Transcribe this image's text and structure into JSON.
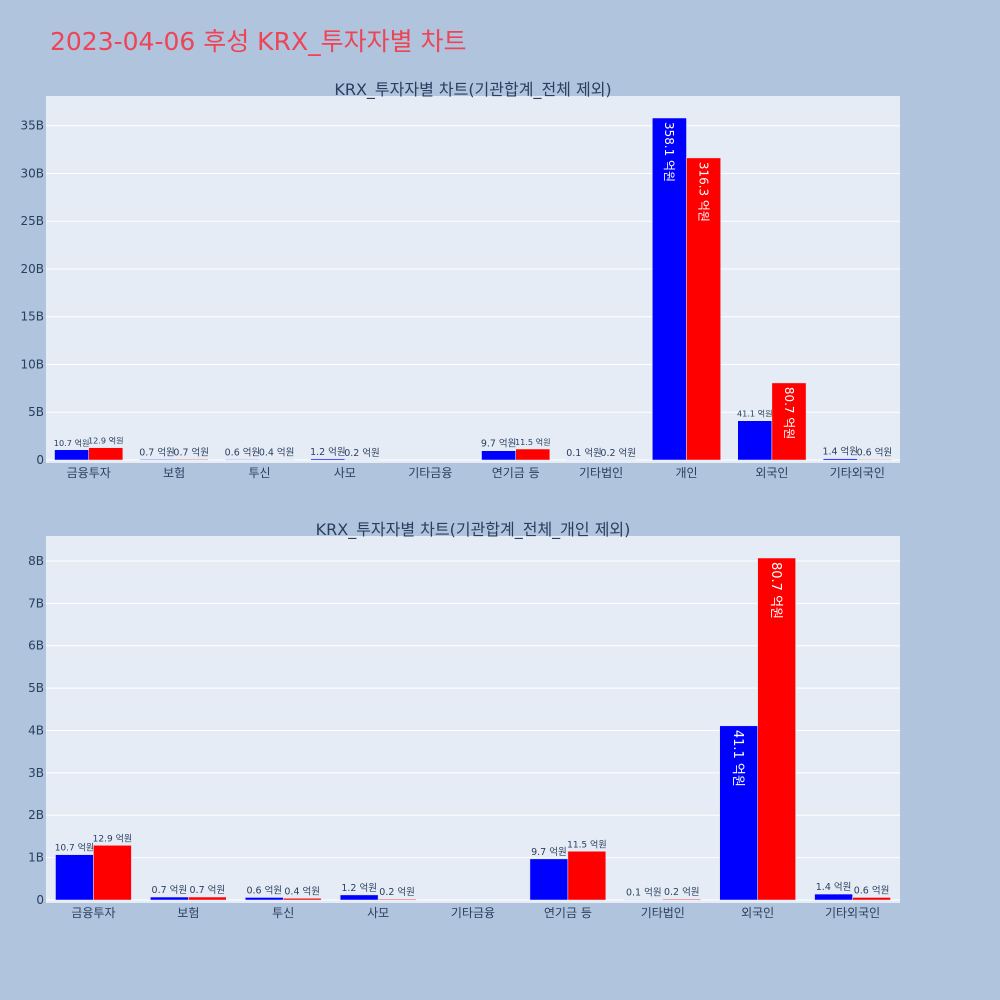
{
  "page_title": "2023-04-06 후성 KRX_투자자별 차트",
  "colors": {
    "buy": "#0000ff",
    "sell": "#ff0000",
    "plot_bg": "#e5ecf6",
    "page_bg": "#b0c4de",
    "title": "#ee4455"
  },
  "chart_data": [
    {
      "type": "bar",
      "title": "KRX_투자자별 차트(기관합계_전체 제외)",
      "categories": [
        "금융투자",
        "보험",
        "투신",
        "사모",
        "기타금융",
        "연기금 등",
        "기타법인",
        "개인",
        "외국인",
        "기타외국인"
      ],
      "series": [
        {
          "color": "#0000ff",
          "values": [
            1.07,
            0.07,
            0.06,
            0.12,
            0,
            0.97,
            0.01,
            35.81,
            4.11,
            0.14
          ],
          "labels": [
            "10.7 억원",
            "0.7 억원",
            "0.6 억원",
            "1.2 억원",
            "",
            "9.7 억원",
            "0.1 억원",
            "358.1 억원",
            "41.1 억원",
            "1.4 억원"
          ]
        },
        {
          "color": "#ff0000",
          "values": [
            1.29,
            0.07,
            0.04,
            0.02,
            0,
            1.15,
            0.02,
            31.63,
            8.07,
            0.06
          ],
          "labels": [
            "12.9 억원",
            "0.7 억원",
            "0.4 억원",
            "0.2 억원",
            "",
            "11.5 억원",
            "0.2 억원",
            "316.3 억원",
            "80.7 억원",
            "0.6 억원"
          ]
        }
      ],
      "yticks": [
        "0",
        "5B",
        "10B",
        "15B",
        "20B",
        "25B",
        "30B",
        "35B"
      ],
      "ytick_values": [
        0,
        5,
        10,
        15,
        20,
        25,
        30,
        35
      ],
      "ylim": [
        0,
        35.81
      ],
      "grid": true
    },
    {
      "type": "bar",
      "title": "KRX_투자자별 차트(기관합계_전체_개인 제외)",
      "categories": [
        "금융투자",
        "보험",
        "투신",
        "사모",
        "기타금융",
        "연기금 등",
        "기타법인",
        "외국인",
        "기타외국인"
      ],
      "series": [
        {
          "color": "#0000ff",
          "values": [
            1.07,
            0.07,
            0.06,
            0.12,
            0,
            0.97,
            0.01,
            4.11,
            0.14
          ],
          "labels": [
            "10.7 억원",
            "0.7 억원",
            "0.6 억원",
            "1.2 억원",
            "",
            "9.7 억원",
            "0.1 억원",
            "41.1 억원",
            "1.4 억원"
          ]
        },
        {
          "color": "#ff0000",
          "values": [
            1.29,
            0.07,
            0.04,
            0.02,
            0,
            1.15,
            0.02,
            8.07,
            0.06
          ],
          "labels": [
            "12.9 억원",
            "0.7 억원",
            "0.4 억원",
            "0.2 억원",
            "",
            "11.5 억원",
            "0.2 억원",
            "80.7 억원",
            "0.6 억원"
          ]
        }
      ],
      "yticks": [
        "0",
        "1B",
        "2B",
        "3B",
        "4B",
        "5B",
        "6B",
        "7B",
        "8B"
      ],
      "ytick_values": [
        0,
        1,
        2,
        3,
        4,
        5,
        6,
        7,
        8
      ],
      "ylim": [
        0,
        8.07
      ],
      "grid": true
    }
  ]
}
